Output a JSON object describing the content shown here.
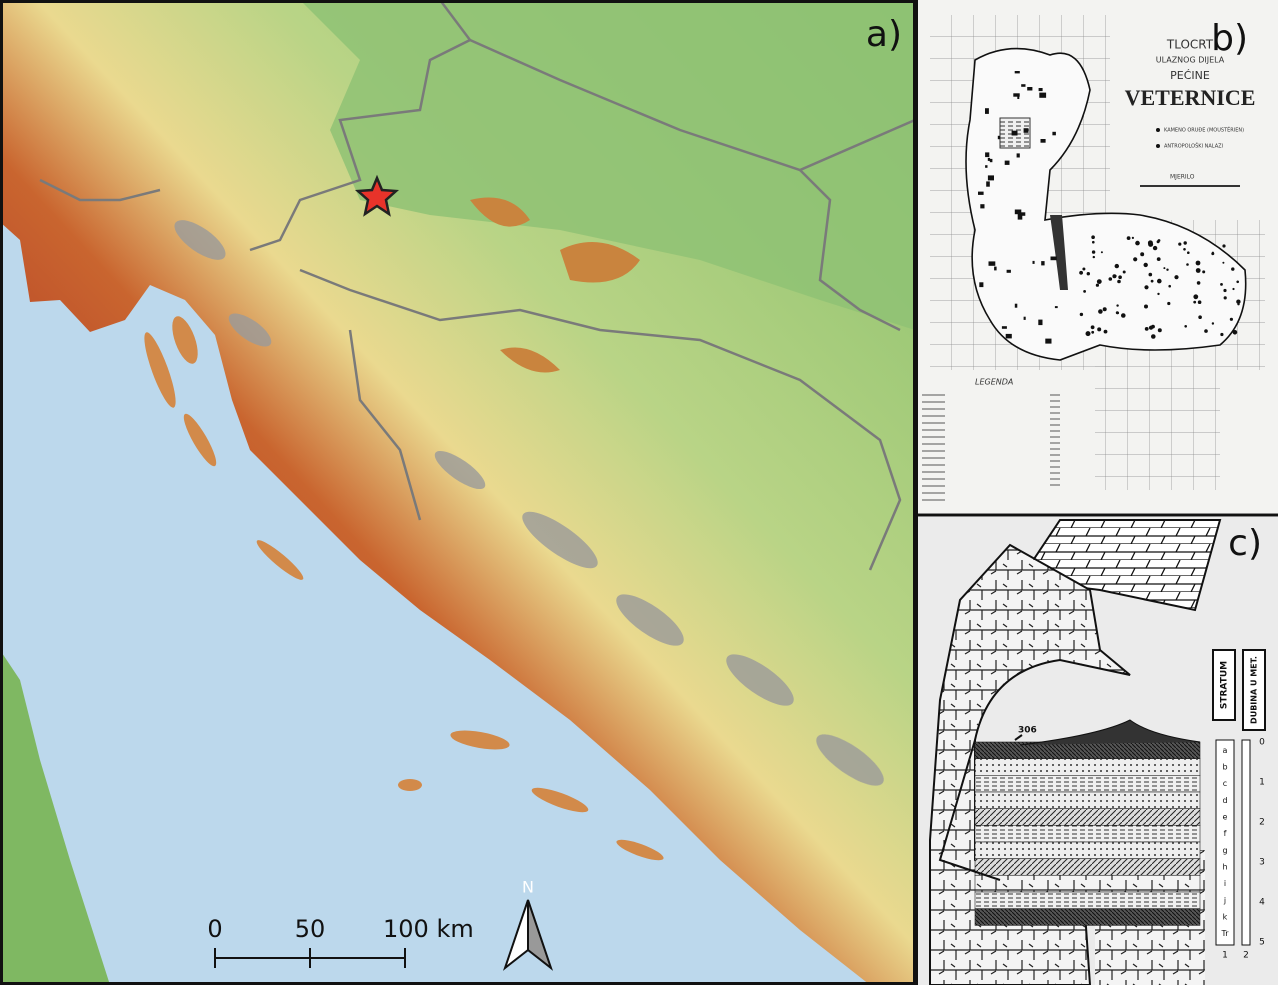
{
  "panels": {
    "a": {
      "label": "a)",
      "scale_bar": {
        "labels": [
          "0",
          "50",
          "100 km"
        ]
      },
      "north": "N"
    },
    "b": {
      "label": "b)",
      "title_lines": [
        "TLOCRT",
        "ULAZNOG DIJELA",
        "PEĆINE",
        "VETERNICE"
      ],
      "legend_items": [
        "KAMENO ORUĐE (MOUSTÉRIEN)",
        "ANTROPOLOŠKI NALAZI"
      ],
      "scale_label": "MJERILO",
      "legend_title": "LEGENDA"
    },
    "c": {
      "label": "c)",
      "column_headers": [
        "STRATUM",
        "DUBINA U MET."
      ],
      "elevation": "306",
      "layers": [
        "a",
        "b",
        "c",
        "d",
        "e",
        "f",
        "g",
        "h",
        "i",
        "j",
        "k",
        "Tr"
      ],
      "depths": [
        "0",
        "1",
        "2",
        "3",
        "4",
        "5"
      ],
      "column_numbers": [
        "1",
        "2"
      ]
    }
  }
}
